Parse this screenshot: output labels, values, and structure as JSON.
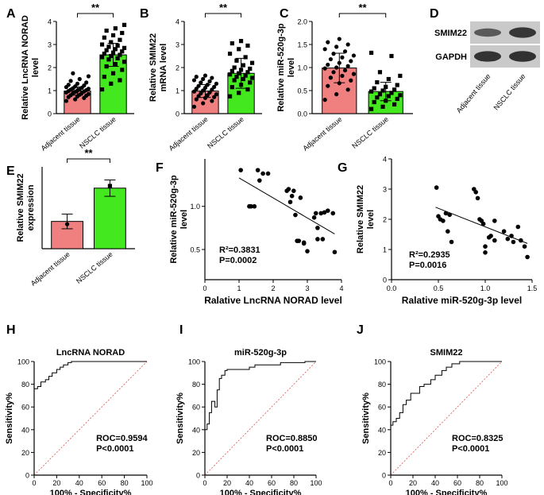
{
  "figure": {
    "colors": {
      "pink": "#f07f7f",
      "green": "#44e81e",
      "black": "#000000",
      "roc_ref": "#e05050",
      "blot_bg": "#c9c9c9",
      "band": "#2b2b2b"
    }
  },
  "chart_data": [
    {
      "panel": "A",
      "type": "bar",
      "ylabel": "Relative LncRNA NORAD level",
      "categories": [
        "Adjacent tissue",
        "NSCLC tissue"
      ],
      "values": [
        0.98,
        2.55
      ],
      "error": [
        0.18,
        0.5
      ],
      "colors": [
        "#f07f7f",
        "#44e81e"
      ],
      "ylim": [
        0,
        4
      ],
      "yticks": [
        0,
        1,
        2,
        3,
        4
      ],
      "significance": "**",
      "points": [
        [
          0.55,
          0.62,
          0.68,
          0.72,
          0.75,
          0.78,
          0.8,
          0.82,
          0.85,
          0.88,
          0.9,
          0.92,
          0.94,
          0.96,
          0.98,
          1.0,
          1.02,
          1.04,
          1.06,
          1.08,
          1.1,
          1.12,
          1.15,
          1.18,
          1.22,
          1.25,
          1.3,
          1.35,
          1.42,
          1.5,
          1.62,
          1.75
        ],
        [
          1.05,
          1.3,
          1.45,
          1.6,
          1.75,
          1.9,
          2.05,
          2.15,
          2.25,
          2.35,
          2.4,
          2.45,
          2.5,
          2.55,
          2.6,
          2.65,
          2.7,
          2.75,
          2.8,
          2.85,
          2.9,
          2.95,
          3.0,
          3.1,
          3.2,
          3.3,
          3.4,
          3.5,
          3.6,
          3.7,
          3.85
        ]
      ]
    },
    {
      "panel": "B",
      "type": "bar",
      "ylabel": "Relative SMIM22 mRNA level",
      "categories": [
        "Adjacent tissue",
        "NSCLC tissue"
      ],
      "values": [
        0.98,
        1.75
      ],
      "error": [
        0.28,
        0.65
      ],
      "colors": [
        "#f07f7f",
        "#44e81e"
      ],
      "ylim": [
        0,
        4
      ],
      "yticks": [
        0,
        1,
        2,
        3,
        4
      ],
      "significance": "**",
      "points": [
        [
          0.3,
          0.45,
          0.55,
          0.62,
          0.68,
          0.72,
          0.76,
          0.8,
          0.84,
          0.88,
          0.92,
          0.96,
          1.0,
          1.04,
          1.08,
          1.12,
          1.16,
          1.2,
          1.25,
          1.3,
          1.35,
          1.4,
          1.45,
          1.5,
          1.55,
          1.6,
          1.65
        ],
        [
          0.75,
          0.9,
          1.05,
          1.15,
          1.25,
          1.35,
          1.45,
          1.5,
          1.55,
          1.6,
          1.65,
          1.7,
          1.75,
          1.8,
          1.85,
          1.9,
          1.95,
          2.0,
          2.1,
          2.2,
          2.3,
          2.45,
          2.6,
          2.8,
          2.95,
          3.05,
          3.15
        ]
      ]
    },
    {
      "panel": "C",
      "type": "bar",
      "ylabel": "Relative miR-520g-3p level",
      "categories": [
        "Adjacent tissue",
        "NSCLC tissue"
      ],
      "values": [
        0.99,
        0.48
      ],
      "error": [
        0.32,
        0.2
      ],
      "colors": [
        "#f07f7f",
        "#44e81e"
      ],
      "ylim": [
        0,
        2.0
      ],
      "yticks": [
        0.0,
        0.5,
        1.0,
        1.5,
        2.0
      ],
      "significance": "**",
      "points": [
        [
          0.3,
          0.42,
          0.52,
          0.6,
          0.66,
          0.72,
          0.78,
          0.82,
          0.86,
          0.9,
          0.94,
          0.98,
          1.0,
          1.03,
          1.06,
          1.1,
          1.14,
          1.18,
          1.22,
          1.26,
          1.3,
          1.35,
          1.4,
          1.45,
          1.5,
          1.55,
          1.62
        ],
        [
          0.1,
          0.15,
          0.2,
          0.25,
          0.28,
          0.32,
          0.35,
          0.38,
          0.4,
          0.42,
          0.45,
          0.48,
          0.5,
          0.52,
          0.55,
          0.58,
          0.62,
          0.68,
          0.75,
          0.82,
          0.9,
          1.25,
          1.32
        ]
      ]
    },
    {
      "panel": "E",
      "type": "bar",
      "ylabel": "Relative SMIM22 expression",
      "categories": [
        "Adjacent tissue",
        "NSCLC tissue"
      ],
      "values": [
        1.0,
        2.22
      ],
      "error": [
        0.27,
        0.3
      ],
      "colors": [
        "#f07f7f",
        "#44e81e"
      ],
      "ylim": [
        0,
        3
      ],
      "significance": "**",
      "points": [
        [
          0.9
        ],
        [
          2.3
        ]
      ]
    },
    {
      "panel": "F",
      "type": "scatter",
      "xlabel": "Ralative LncRNA NORAD level",
      "ylabel": "Relative miR-520g-3p level",
      "xlim": [
        0,
        4
      ],
      "ylim": [
        0.15,
        1.55
      ],
      "xticks": [
        0,
        1,
        2,
        3,
        4
      ],
      "yticks": [
        0.5,
        1.0
      ],
      "annotation": [
        "R²=0.3831",
        "P=0.0002"
      ],
      "fit": [
        [
          1.0,
          1.33
        ],
        [
          3.8,
          0.68
        ]
      ],
      "x": [
        1.05,
        1.3,
        1.35,
        1.45,
        1.55,
        1.6,
        1.7,
        1.85,
        2.4,
        2.45,
        2.55,
        2.6,
        2.65,
        2.7,
        2.75,
        2.8,
        2.9,
        2.9,
        3.0,
        3.2,
        3.25,
        3.3,
        3.4,
        3.45,
        3.5,
        3.6,
        3.75,
        3.8,
        3.3,
        2.5
      ],
      "y": [
        1.42,
        1.0,
        1.0,
        1.0,
        1.42,
        1.3,
        1.38,
        1.38,
        1.18,
        1.2,
        1.12,
        1.18,
        0.9,
        0.6,
        0.6,
        1.1,
        0.57,
        0.58,
        0.48,
        0.87,
        0.92,
        0.75,
        0.92,
        0.62,
        0.93,
        0.95,
        0.92,
        0.47,
        0.62,
        1.05
      ]
    },
    {
      "panel": "G",
      "type": "scatter",
      "xlabel": "Ralative  miR-520g-3p level",
      "ylabel": "Relative SMIM22  level",
      "xlim": [
        0,
        1.5
      ],
      "ylim": [
        0,
        4
      ],
      "xticks": [
        0.0,
        0.5,
        1.0,
        1.5
      ],
      "yticks": [
        0,
        1,
        2,
        3,
        4
      ],
      "annotation": [
        "R²=0.2935",
        "P=0.0016"
      ],
      "fit": [
        [
          0.47,
          2.4
        ],
        [
          1.45,
          1.2
        ]
      ],
      "x": [
        0.48,
        0.5,
        0.52,
        0.55,
        0.58,
        0.6,
        0.62,
        0.64,
        0.88,
        0.9,
        0.92,
        0.94,
        0.96,
        1.0,
        1.0,
        1.04,
        1.06,
        1.1,
        1.2,
        1.24,
        1.28,
        1.3,
        1.35,
        1.38,
        1.42,
        1.45,
        1.1,
        0.98
      ],
      "y": [
        3.05,
        2.1,
        2.0,
        1.95,
        2.2,
        1.6,
        2.15,
        1.25,
        3.0,
        2.9,
        2.7,
        2.0,
        1.95,
        1.1,
        0.9,
        1.4,
        1.45,
        1.95,
        1.6,
        1.35,
        1.45,
        1.25,
        1.75,
        1.3,
        1.1,
        0.75,
        1.3,
        1.85
      ]
    },
    {
      "panel": "H",
      "type": "line",
      "title": "LncRNA NORAD",
      "xlabel": "100% - Specificity%",
      "ylabel": "Sensitivity%",
      "xlim": [
        0,
        100
      ],
      "ylim": [
        0,
        100
      ],
      "xticks": [
        0,
        20,
        40,
        60,
        80,
        100
      ],
      "yticks": [
        0,
        20,
        40,
        60,
        80,
        100
      ],
      "annotation": [
        "ROC=0.9594",
        "P<0.0001"
      ],
      "x": [
        0,
        0,
        3,
        3,
        6,
        6,
        10,
        10,
        13,
        13,
        16,
        16,
        20,
        20,
        23,
        23,
        26,
        26,
        30,
        30,
        33,
        33,
        100
      ],
      "y": [
        0,
        76,
        76,
        78,
        78,
        82,
        82,
        84,
        84,
        87,
        87,
        90,
        90,
        93,
        93,
        95,
        95,
        97,
        97,
        99,
        99,
        100,
        100
      ]
    },
    {
      "panel": "I",
      "type": "line",
      "title": "miR-520g-3p",
      "xlabel": "100% - Specificity%",
      "ylabel": "Sensitivity%",
      "xlim": [
        0,
        100
      ],
      "ylim": [
        0,
        100
      ],
      "xticks": [
        0,
        20,
        40,
        60,
        80,
        100
      ],
      "yticks": [
        0,
        20,
        40,
        60,
        80,
        100
      ],
      "annotation": [
        "ROC=0.8850",
        "P<0.0001"
      ],
      "x": [
        0,
        0,
        2,
        2,
        4,
        4,
        6,
        6,
        9,
        9,
        11,
        11,
        13,
        13,
        15,
        15,
        18,
        18,
        20,
        20,
        40,
        40,
        45,
        45,
        68,
        68,
        90,
        90,
        100
      ],
      "y": [
        0,
        40,
        40,
        45,
        45,
        55,
        55,
        65,
        65,
        60,
        60,
        75,
        75,
        85,
        85,
        88,
        88,
        92,
        92,
        93,
        93,
        95,
        95,
        97,
        97,
        99,
        99,
        100,
        100
      ]
    },
    {
      "panel": "J",
      "type": "line",
      "title": "SMIM22",
      "xlabel": "100% - Specificity%",
      "ylabel": "Sensitivity%",
      "xlim": [
        0,
        100
      ],
      "ylim": [
        0,
        100
      ],
      "xticks": [
        0,
        20,
        40,
        60,
        80,
        100
      ],
      "yticks": [
        0,
        20,
        40,
        60,
        80,
        100
      ],
      "annotation": [
        "ROC=0.8325",
        "P<0.0001"
      ],
      "x": [
        0,
        0,
        2,
        2,
        5,
        5,
        8,
        8,
        11,
        11,
        14,
        14,
        18,
        18,
        26,
        26,
        30,
        30,
        36,
        36,
        40,
        40,
        46,
        46,
        50,
        50,
        55,
        55,
        62,
        62,
        100
      ],
      "y": [
        0,
        44,
        44,
        47,
        47,
        50,
        50,
        55,
        55,
        62,
        62,
        66,
        66,
        72,
        72,
        78,
        78,
        80,
        80,
        84,
        84,
        88,
        88,
        92,
        92,
        95,
        95,
        98,
        98,
        100,
        100
      ]
    }
  ],
  "blot": {
    "panel": "D",
    "rows": [
      "SMIM22",
      "GAPDH"
    ],
    "lanes": [
      "Adjacent tissue",
      "NSCLC tissue"
    ],
    "band_intensity": [
      [
        0.55,
        0.9
      ],
      [
        0.92,
        0.95
      ]
    ]
  }
}
